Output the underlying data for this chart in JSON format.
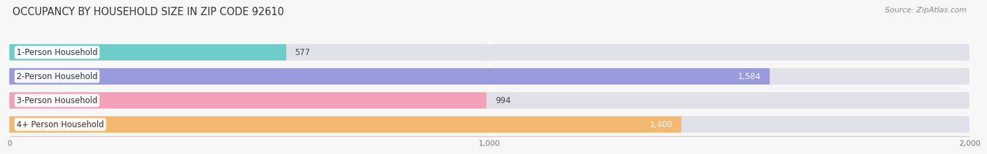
{
  "title": "OCCUPANCY BY HOUSEHOLD SIZE IN ZIP CODE 92610",
  "source": "Source: ZipAtlas.com",
  "categories": [
    "1-Person Household",
    "2-Person Household",
    "3-Person Household",
    "4+ Person Household"
  ],
  "values": [
    577,
    1584,
    994,
    1400
  ],
  "bar_colors": [
    "#6dcdc8",
    "#9999dd",
    "#f4a0b8",
    "#f5b870"
  ],
  "bar_bg_color": "#e8e8ee",
  "value_colors": [
    "#555555",
    "#ffffff",
    "#555555",
    "#ffffff"
  ],
  "xlim": [
    0,
    2000
  ],
  "xticks": [
    0,
    1000,
    2000
  ],
  "xtick_labels": [
    "0",
    "1,000",
    "2,000"
  ],
  "title_fontsize": 10.5,
  "source_fontsize": 8,
  "label_fontsize": 8.5,
  "value_fontsize": 8.5,
  "background_color": "#f7f7f7",
  "bar_background_color": "#e0e0e8"
}
